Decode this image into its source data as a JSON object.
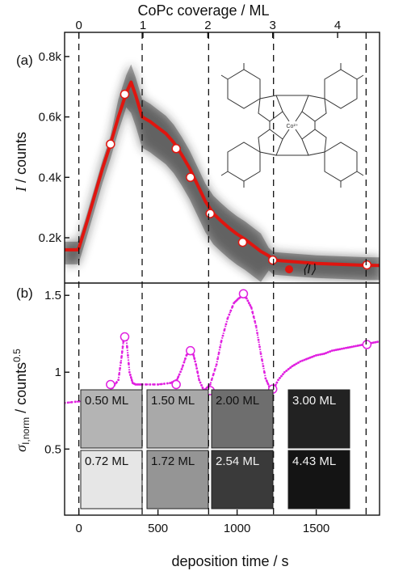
{
  "top_axis": {
    "label": "CoPc coverage / ML",
    "ticks": [
      {
        "label": "0",
        "time": 0
      },
      {
        "label": "1",
        "time": 405
      },
      {
        "label": "2",
        "time": 815
      },
      {
        "label": "3",
        "time": 1225
      },
      {
        "label": "4",
        "time": 1635
      }
    ]
  },
  "x_axis": {
    "label": "deposition time / s",
    "range": [
      -90,
      1900
    ],
    "ticks": [
      "0",
      "500",
      "1000",
      "1500"
    ]
  },
  "boundaries_s": [
    0,
    400,
    820,
    1230,
    1815
  ],
  "molecule_label": "Co²⁺",
  "chart_data": [
    {
      "id": "a",
      "panel_label": "(a)",
      "type": "line",
      "ylabel": "I / counts",
      "ylim": [
        50,
        880
      ],
      "y_ticks": [
        {
          "label": "0.2k",
          "value": 200
        },
        {
          "label": "0.4k",
          "value": 400
        },
        {
          "label": "0.6k",
          "value": 600
        },
        {
          "label": "0.8k",
          "value": 800
        }
      ],
      "legend": {
        "label": "⟨I⟩",
        "placement": "bottom-right"
      },
      "series_color": "#e0150f",
      "mean_curve": {
        "x": [
          -90,
          -10,
          0,
          50,
          100,
          150,
          200,
          250,
          300,
          330,
          360,
          400,
          450,
          500,
          550,
          600,
          650,
          700,
          750,
          800,
          850,
          900,
          950,
          1000,
          1050,
          1100,
          1150,
          1200,
          1230,
          1300,
          1400,
          1500,
          1600,
          1700,
          1800,
          1900
        ],
        "y": [
          160,
          160,
          165,
          250,
          340,
          430,
          510,
          600,
          680,
          715,
          670,
          600,
          585,
          565,
          545,
          515,
          475,
          430,
          375,
          320,
          280,
          255,
          232,
          212,
          195,
          175,
          155,
          140,
          126,
          123,
          119,
          115,
          113,
          111,
          109,
          108
        ]
      },
      "markers": {
        "x": [
          200,
          290,
          615,
          705,
          830,
          1035,
          1225,
          1820
        ],
        "y": [
          510,
          675,
          495,
          400,
          280,
          185,
          126,
          110
        ]
      }
    },
    {
      "id": "b",
      "panel_label": "(b)",
      "type": "scatter",
      "ylabel": "σ_{I,norm} / counts^{0.5}",
      "ylim": [
        0.07,
        1.58
      ],
      "y_ticks": [
        {
          "label": "0.5",
          "value": 0.5
        },
        {
          "label": "1",
          "value": 1.0
        },
        {
          "label": "1.5",
          "value": 1.5
        }
      ],
      "series_color": "#e020e0",
      "curve": {
        "x": [
          -90,
          0,
          100,
          200,
          250,
          270,
          285,
          300,
          320,
          340,
          360,
          400,
          500,
          580,
          620,
          650,
          680,
          700,
          720,
          740,
          760,
          790,
          830,
          870,
          900,
          940,
          980,
          1010,
          1040,
          1060,
          1090,
          1120,
          1150,
          1180,
          1210,
          1225,
          1260,
          1300,
          1350,
          1400,
          1450,
          1500,
          1550,
          1600,
          1650,
          1700,
          1750,
          1800,
          1850,
          1900
        ],
        "y": [
          0.8,
          0.81,
          0.84,
          0.88,
          0.95,
          1.1,
          1.23,
          1.22,
          1.0,
          0.93,
          0.92,
          0.92,
          0.92,
          0.93,
          0.95,
          1.02,
          1.11,
          1.14,
          1.13,
          1.05,
          0.95,
          0.88,
          0.92,
          1.05,
          1.2,
          1.35,
          1.45,
          1.48,
          1.5,
          1.48,
          1.42,
          1.3,
          1.12,
          0.96,
          0.89,
          0.88,
          0.95,
          1.0,
          1.04,
          1.07,
          1.09,
          1.11,
          1.12,
          1.14,
          1.15,
          1.16,
          1.17,
          1.18,
          1.19,
          1.2
        ]
      },
      "markers": {
        "x": [
          200,
          290,
          615,
          705,
          830,
          1040,
          1225,
          1820
        ],
        "y": [
          0.92,
          1.23,
          0.92,
          1.14,
          0.88,
          1.51,
          0.89,
          1.18
        ]
      },
      "insets": [
        {
          "label": "0.50 ML",
          "shade": "#b4b4b4"
        },
        {
          "label": "1.50 ML",
          "shade": "#a9a9a9"
        },
        {
          "label": "2.00 ML",
          "shade": "#6e6e6e"
        },
        {
          "label": "3.00 ML",
          "shade": "#222222"
        },
        {
          "label": "0.72 ML",
          "shade": "#e6e6e6"
        },
        {
          "label": "1.72 ML",
          "shade": "#959595"
        },
        {
          "label": "2.54 ML",
          "shade": "#3a3a3a"
        },
        {
          "label": "4.43 ML",
          "shade": "#141414"
        }
      ]
    }
  ]
}
